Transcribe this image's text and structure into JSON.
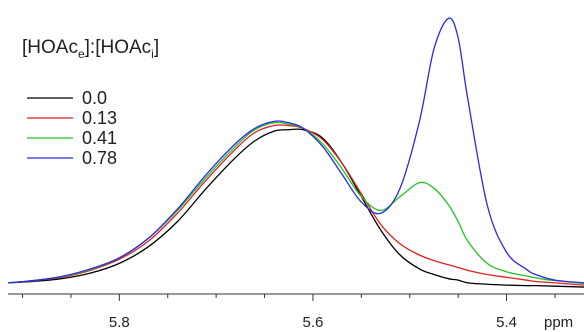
{
  "chart_data": {
    "type": "line",
    "title": "",
    "xlabel": "ppm",
    "ylabel": "",
    "x_reversed": true,
    "xlim": [
      5.915,
      5.32
    ],
    "ylim": [
      -0.02,
      1.0
    ],
    "x_ticks": [
      {
        "value": 5.8,
        "label": "5.8"
      },
      {
        "value": 5.6,
        "label": "5.6"
      },
      {
        "value": 5.4,
        "label": "5.4"
      }
    ],
    "legend": {
      "title_main": "[HOAc",
      "title_sub1": "e",
      "title_mid": "]:[HOAc",
      "title_sub2": "i",
      "title_end": "]",
      "placement": "top-left"
    },
    "x": [
      5.915,
      5.89,
      5.86,
      5.83,
      5.8,
      5.77,
      5.74,
      5.71,
      5.68,
      5.66,
      5.64,
      5.625,
      5.61,
      5.59,
      5.57,
      5.55,
      5.53,
      5.51,
      5.49,
      5.475,
      5.46,
      5.45,
      5.44,
      5.42,
      5.4,
      5.38,
      5.37,
      5.35,
      5.32
    ],
    "series": [
      {
        "name": "0.0",
        "color": "#000000",
        "values": [
          0.02,
          0.025,
          0.035,
          0.055,
          0.09,
          0.15,
          0.24,
          0.36,
          0.47,
          0.53,
          0.565,
          0.57,
          0.57,
          0.54,
          0.45,
          0.33,
          0.21,
          0.12,
          0.07,
          0.05,
          0.035,
          0.03,
          0.02,
          0.015,
          0.012,
          0.01,
          0.01,
          0.008,
          0.005
        ]
      },
      {
        "name": "0.13",
        "color": "#e02020",
        "values": [
          0.02,
          0.027,
          0.04,
          0.065,
          0.105,
          0.17,
          0.27,
          0.39,
          0.5,
          0.56,
          0.585,
          0.585,
          0.575,
          0.535,
          0.45,
          0.34,
          0.23,
          0.16,
          0.12,
          0.1,
          0.085,
          0.075,
          0.065,
          0.05,
          0.04,
          0.03,
          0.025,
          0.02,
          0.012
        ]
      },
      {
        "name": "0.41",
        "color": "#22c422",
        "values": [
          0.02,
          0.028,
          0.042,
          0.068,
          0.11,
          0.18,
          0.28,
          0.4,
          0.51,
          0.57,
          0.595,
          0.59,
          0.575,
          0.52,
          0.43,
          0.33,
          0.28,
          0.33,
          0.38,
          0.36,
          0.3,
          0.24,
          0.17,
          0.09,
          0.06,
          0.045,
          0.038,
          0.028,
          0.018
        ]
      },
      {
        "name": "0.78",
        "color": "#2a2ae6",
        "values": [
          0.02,
          0.028,
          0.043,
          0.07,
          0.11,
          0.18,
          0.285,
          0.41,
          0.52,
          0.575,
          0.6,
          0.595,
          0.575,
          0.51,
          0.41,
          0.31,
          0.27,
          0.36,
          0.6,
          0.86,
          0.97,
          0.9,
          0.68,
          0.3,
          0.13,
          0.07,
          0.05,
          0.03,
          0.02
        ]
      }
    ]
  }
}
